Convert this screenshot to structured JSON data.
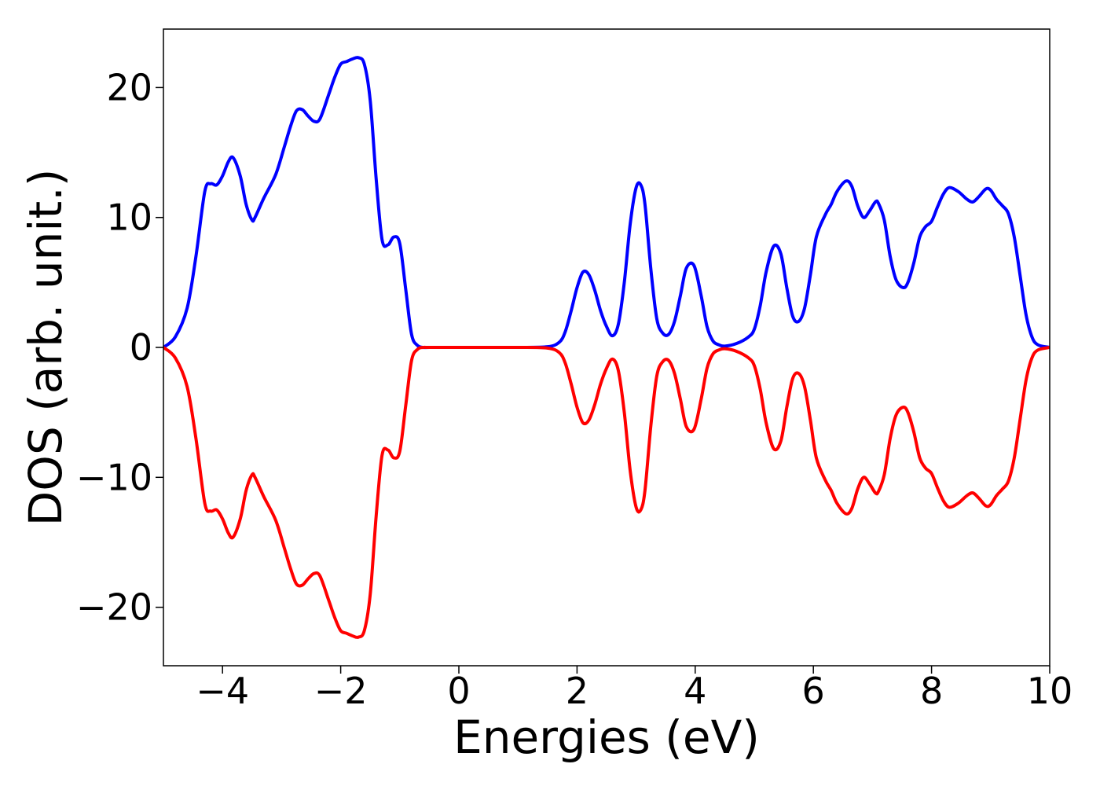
{
  "chart_data": {
    "type": "line",
    "title": "",
    "xlabel": "Energies (eV)",
    "ylabel": "DOS (arb. unit.)",
    "xlim": [
      -5,
      10
    ],
    "ylim": [
      -24.5,
      24.5
    ],
    "grid": false,
    "legend": "none",
    "x_ticks": [
      -4,
      -2,
      0,
      2,
      4,
      6,
      8,
      10
    ],
    "x_tick_labels": [
      "−4",
      "−2",
      "0",
      "2",
      "4",
      "6",
      "8",
      "10"
    ],
    "y_ticks": [
      20,
      10,
      0,
      -10,
      -20
    ],
    "y_tick_labels": [
      "20",
      "10",
      "0",
      "−10",
      "−20"
    ],
    "series": [
      {
        "color": "#0000ff",
        "x": [
          -5.0,
          -4.8,
          -4.6,
          -4.45,
          -4.3,
          -4.2,
          -4.1,
          -4.0,
          -3.9,
          -3.82,
          -3.7,
          -3.6,
          -3.5,
          -3.45,
          -3.3,
          -3.1,
          -2.95,
          -2.85,
          -2.75,
          -2.65,
          -2.55,
          -2.45,
          -2.35,
          -2.2,
          -2.1,
          -2.0,
          -1.9,
          -1.8,
          -1.7,
          -1.6,
          -1.5,
          -1.4,
          -1.3,
          -1.2,
          -1.1,
          -1.0,
          -0.9,
          -0.8,
          -0.7,
          -0.6,
          -0.5,
          0.0,
          0.5,
          1.0,
          1.5,
          1.7,
          1.8,
          1.9,
          2.0,
          2.1,
          2.2,
          2.3,
          2.4,
          2.5,
          2.6,
          2.7,
          2.8,
          2.9,
          3.0,
          3.08,
          3.15,
          3.25,
          3.35,
          3.45,
          3.55,
          3.65,
          3.75,
          3.85,
          3.98,
          4.1,
          4.2,
          4.3,
          4.4,
          4.5,
          4.7,
          4.9,
          5.0,
          5.1,
          5.2,
          5.33,
          5.45,
          5.55,
          5.65,
          5.75,
          5.85,
          5.95,
          6.05,
          6.2,
          6.3,
          6.4,
          6.55,
          6.65,
          6.75,
          6.85,
          6.95,
          7.05,
          7.1,
          7.2,
          7.3,
          7.4,
          7.52,
          7.6,
          7.7,
          7.8,
          7.9,
          8.0,
          8.1,
          8.2,
          8.3,
          8.45,
          8.6,
          8.7,
          8.8,
          8.92,
          9.0,
          9.1,
          9.2,
          9.3,
          9.4,
          9.5,
          9.6,
          9.7,
          9.8,
          10.0
        ],
        "values": [
          0.0,
          0.8,
          3.0,
          7.0,
          12.0,
          12.6,
          12.5,
          13.2,
          14.3,
          14.6,
          13.2,
          11.0,
          9.8,
          10.0,
          11.5,
          13.3,
          15.5,
          17.0,
          18.2,
          18.3,
          17.8,
          17.4,
          17.6,
          19.5,
          20.8,
          21.8,
          22.0,
          22.2,
          22.3,
          21.8,
          19.0,
          13.0,
          8.3,
          7.9,
          8.5,
          8.0,
          4.5,
          1.0,
          0.15,
          0.0,
          0.0,
          0.0,
          0.0,
          0.0,
          0.05,
          0.4,
          1.2,
          2.8,
          4.6,
          5.8,
          5.6,
          4.4,
          2.8,
          1.6,
          0.9,
          1.8,
          5.0,
          9.5,
          12.3,
          12.5,
          11.0,
          6.0,
          2.2,
          1.1,
          1.0,
          2.0,
          4.0,
          6.1,
          6.3,
          4.0,
          1.6,
          0.5,
          0.2,
          0.1,
          0.3,
          0.8,
          1.4,
          3.2,
          5.8,
          7.8,
          7.2,
          4.6,
          2.4,
          2.0,
          3.0,
          5.6,
          8.5,
          10.2,
          11.0,
          12.0,
          12.8,
          12.4,
          10.9,
          10.0,
          10.5,
          11.2,
          11.1,
          9.8,
          7.0,
          5.2,
          4.6,
          5.0,
          6.5,
          8.5,
          9.3,
          9.7,
          10.8,
          11.8,
          12.3,
          12.0,
          11.4,
          11.2,
          11.6,
          12.2,
          12.1,
          11.4,
          10.9,
          10.3,
          8.5,
          5.5,
          2.5,
          0.8,
          0.2,
          0.0
        ]
      },
      {
        "color": "#ff0000",
        "x": [
          -5.0,
          -4.8,
          -4.6,
          -4.45,
          -4.3,
          -4.2,
          -4.1,
          -4.0,
          -3.9,
          -3.82,
          -3.7,
          -3.6,
          -3.5,
          -3.45,
          -3.3,
          -3.1,
          -2.95,
          -2.85,
          -2.75,
          -2.65,
          -2.55,
          -2.45,
          -2.35,
          -2.2,
          -2.1,
          -2.0,
          -1.9,
          -1.8,
          -1.7,
          -1.6,
          -1.5,
          -1.4,
          -1.3,
          -1.2,
          -1.1,
          -1.0,
          -0.9,
          -0.8,
          -0.7,
          -0.6,
          -0.5,
          0.0,
          0.5,
          1.0,
          1.5,
          1.7,
          1.8,
          1.9,
          2.0,
          2.1,
          2.2,
          2.3,
          2.4,
          2.5,
          2.6,
          2.7,
          2.8,
          2.9,
          3.0,
          3.08,
          3.15,
          3.25,
          3.35,
          3.45,
          3.55,
          3.65,
          3.75,
          3.85,
          3.98,
          4.1,
          4.2,
          4.3,
          4.4,
          4.5,
          4.7,
          4.9,
          5.0,
          5.1,
          5.2,
          5.33,
          5.45,
          5.55,
          5.65,
          5.75,
          5.85,
          5.95,
          6.05,
          6.2,
          6.3,
          6.4,
          6.55,
          6.65,
          6.75,
          6.85,
          6.95,
          7.05,
          7.1,
          7.2,
          7.3,
          7.4,
          7.52,
          7.6,
          7.7,
          7.8,
          7.9,
          8.0,
          8.1,
          8.2,
          8.3,
          8.45,
          8.6,
          8.7,
          8.8,
          8.92,
          9.0,
          9.1,
          9.2,
          9.3,
          9.4,
          9.5,
          9.6,
          9.7,
          9.8,
          10.0
        ],
        "values": [
          0.0,
          -0.8,
          -3.0,
          -7.0,
          -12.0,
          -12.6,
          -12.5,
          -13.2,
          -14.3,
          -14.6,
          -13.2,
          -11.0,
          -9.8,
          -10.0,
          -11.5,
          -13.3,
          -15.5,
          -17.0,
          -18.2,
          -18.3,
          -17.8,
          -17.4,
          -17.6,
          -19.5,
          -20.8,
          -21.8,
          -22.0,
          -22.2,
          -22.3,
          -21.8,
          -19.0,
          -13.0,
          -8.3,
          -7.9,
          -8.5,
          -8.0,
          -4.5,
          -1.0,
          -0.15,
          0.0,
          0.0,
          0.0,
          0.0,
          0.0,
          -0.05,
          -0.4,
          -1.2,
          -2.8,
          -4.6,
          -5.8,
          -5.6,
          -4.4,
          -2.8,
          -1.6,
          -0.9,
          -1.8,
          -5.0,
          -9.5,
          -12.3,
          -12.5,
          -11.0,
          -6.0,
          -2.2,
          -1.1,
          -1.0,
          -2.0,
          -4.0,
          -6.1,
          -6.3,
          -4.0,
          -1.6,
          -0.5,
          -0.2,
          -0.1,
          -0.3,
          -0.8,
          -1.4,
          -3.2,
          -5.8,
          -7.8,
          -7.2,
          -4.6,
          -2.4,
          -2.0,
          -3.0,
          -5.6,
          -8.5,
          -10.2,
          -11.0,
          -12.0,
          -12.8,
          -12.4,
          -10.9,
          -10.0,
          -10.5,
          -11.2,
          -11.1,
          -9.8,
          -7.0,
          -5.2,
          -4.6,
          -5.0,
          -6.5,
          -8.5,
          -9.3,
          -9.7,
          -10.8,
          -11.8,
          -12.3,
          -12.0,
          -11.4,
          -11.2,
          -11.6,
          -12.2,
          -12.1,
          -11.4,
          -10.9,
          -10.3,
          -8.5,
          -5.5,
          -2.5,
          -0.8,
          -0.2,
          0.0
        ]
      }
    ]
  }
}
